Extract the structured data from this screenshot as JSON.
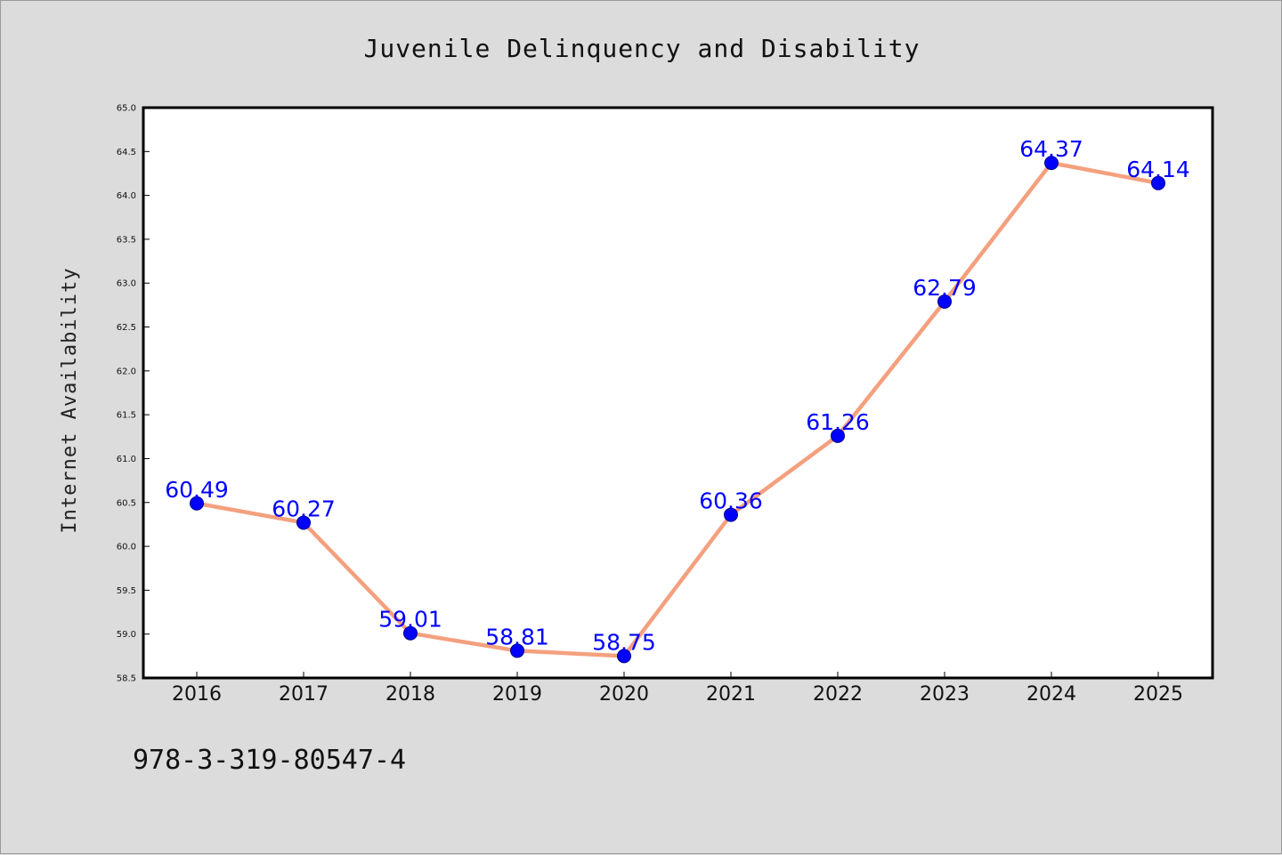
{
  "chart_data": {
    "type": "line",
    "title": "Juvenile Delinquency and Disability",
    "xlabel": "",
    "ylabel": "Internet Availability",
    "categories": [
      "2016",
      "2017",
      "2018",
      "2019",
      "2020",
      "2021",
      "2022",
      "2023",
      "2024",
      "2025"
    ],
    "series": [
      {
        "values": [
          60.49,
          60.27,
          59.01,
          58.81,
          58.75,
          60.36,
          61.26,
          62.79,
          64.37,
          64.14
        ],
        "labels": [
          "60.49",
          "60.27",
          "59.01",
          "58.81",
          "58.75",
          "60.36",
          "61.26",
          "62.79",
          "64.37",
          "64.14"
        ]
      }
    ],
    "ylim": [
      58.5,
      65.0
    ],
    "yticks": [
      "58.5",
      "59.0",
      "59.5",
      "60.0",
      "60.5",
      "61.0",
      "61.5",
      "62.0",
      "62.5",
      "63.0",
      "63.5",
      "64.0",
      "64.5",
      "65.0"
    ],
    "grid": false,
    "legend": "none",
    "colors": {
      "line": "#f4a07e",
      "marker": "#0000ff",
      "data_label": "#0000ff",
      "background": "#dcdcdc",
      "plot_background": "#ffffff"
    }
  },
  "footer": {
    "isbn": "978-3-319-80547-4"
  }
}
